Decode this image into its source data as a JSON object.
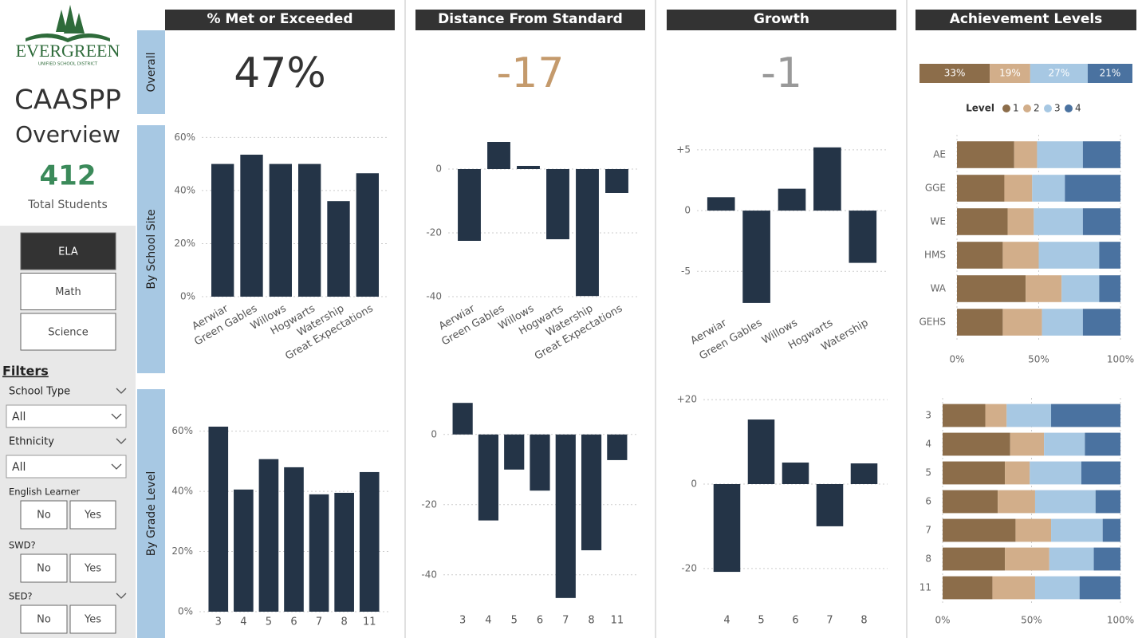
{
  "sidebar": {
    "logo_name": "EVERGREEN",
    "logo_sub": "UNIFIED SCHOOL DISTRICT",
    "title": "CAASPP",
    "subtitle": "Overview",
    "total": 412,
    "total_label": "Total Students",
    "subjects": [
      "ELA",
      "Math",
      "Science"
    ],
    "filters_title": "Filters",
    "dropdowns": [
      {
        "label": "School Type",
        "value": "All"
      },
      {
        "label": "Ethnicity",
        "value": "All"
      }
    ],
    "toggles": [
      {
        "label": "English Learner",
        "options": [
          "No",
          "Yes"
        ]
      },
      {
        "label": "SWD?",
        "options": [
          "No",
          "Yes"
        ]
      },
      {
        "label": "SED?",
        "options": [
          "No",
          "Yes"
        ]
      }
    ]
  },
  "panels": {
    "headers": [
      "% Met or Exceeded",
      "Distance From Standard",
      "Growth",
      "Achievement Levels"
    ],
    "row_labels": [
      "Overall",
      "By School Site",
      "By Grade Level"
    ],
    "kpis": [
      "47%",
      "-17",
      "-1"
    ]
  },
  "chart_data": [
    {
      "type": "bar",
      "categories": [
        "Aerwiar",
        "Green Gables",
        "Willows",
        "Hogwarts",
        "Watership",
        "Great Expectations"
      ],
      "values": [
        50,
        53.5,
        50,
        50,
        36,
        46.5
      ],
      "color": "#243447",
      "ylim": [
        0,
        64
      ],
      "yticks": [
        {
          "value": 0,
          "label": "0%"
        },
        {
          "value": 20,
          "label": "20%"
        },
        {
          "value": 40,
          "label": "40%"
        },
        {
          "value": 60,
          "label": "60%"
        }
      ],
      "grid": true
    },
    {
      "type": "bar",
      "categories": [
        "Aerwiar",
        "Green Gables",
        "Willows",
        "Hogwarts",
        "Watership",
        "Great Expectations"
      ],
      "values": [
        -22.5,
        8.5,
        1,
        -22,
        -39.8,
        -7.5
      ],
      "color": "#243447",
      "ylim": [
        -42,
        12
      ],
      "yticks": [
        0,
        -20,
        -40
      ],
      "grid": true
    },
    {
      "type": "bar",
      "categories": [
        "Aerwiar",
        "Green Gables",
        "Willows",
        "Hogwarts",
        "Watership"
      ],
      "values": [
        1.1,
        -7.6,
        1.8,
        5.2,
        -4.3
      ],
      "color": "#243447",
      "ylim": [
        -8,
        6.5
      ],
      "yticks": [
        {
          "value": 5,
          "label": "+5"
        },
        0,
        -5
      ],
      "grid": true
    },
    {
      "type": "stacked-bar",
      "legend_title": "Level",
      "series": [
        {
          "name": "1",
          "color": "#8c6d4a",
          "values": [
            33
          ],
          "value_labels": [
            "33%"
          ]
        },
        {
          "name": "2",
          "color": "#d2ae8a",
          "values": [
            19
          ],
          "value_labels": [
            "19%"
          ]
        },
        {
          "name": "3",
          "color": "#a7c8e3",
          "values": [
            27
          ],
          "value_labels": [
            "27%"
          ]
        },
        {
          "name": "4",
          "color": "#4a72a0",
          "values": [
            21
          ],
          "value_labels": [
            "21%"
          ]
        }
      ]
    },
    {
      "type": "stacked-hbar",
      "categories": [
        "AE",
        "GGE",
        "WE",
        "HMS",
        "WA",
        "GEHS"
      ],
      "series": [
        {
          "color": "#8c6d4a",
          "values": [
            35,
            29,
            31,
            28,
            42,
            28
          ]
        },
        {
          "color": "#d2ae8a",
          "values": [
            14,
            17,
            16,
            22,
            22,
            24
          ]
        },
        {
          "color": "#a7c8e3",
          "values": [
            28,
            20,
            30,
            37,
            23,
            25
          ]
        },
        {
          "color": "#4a72a0",
          "values": [
            23,
            34,
            23,
            13,
            13,
            23
          ]
        }
      ],
      "xlim": [
        0,
        100
      ],
      "xticks": [
        {
          "value": 0,
          "label": "0%"
        },
        {
          "value": 50,
          "label": "50%"
        },
        {
          "value": 100,
          "label": "100%"
        }
      ],
      "grid": true
    },
    {
      "type": "bar",
      "categories": [
        "3",
        "4",
        "5",
        "6",
        "7",
        "8",
        "11"
      ],
      "values": [
        61.5,
        40.6,
        50.7,
        48,
        39,
        39.5,
        46.4
      ],
      "color": "#243447",
      "ylim": [
        0,
        66
      ],
      "yticks": [
        {
          "value": 0,
          "label": "0%"
        },
        {
          "value": 20,
          "label": "20%"
        },
        {
          "value": 40,
          "label": "40%"
        },
        {
          "value": 60,
          "label": "60%"
        }
      ],
      "grid": true
    },
    {
      "type": "bar",
      "categories": [
        "3",
        "4",
        "5",
        "6",
        "7",
        "8",
        "11"
      ],
      "values": [
        9,
        -24.5,
        -10,
        -16,
        -46.6,
        -33,
        -7.3
      ],
      "color": "#243447",
      "ylim": [
        -48,
        12
      ],
      "yticks": [
        0,
        -20,
        -40
      ],
      "grid": true
    },
    {
      "type": "bar",
      "categories": [
        "4",
        "5",
        "6",
        "7",
        "8"
      ],
      "values": [
        -20.8,
        15.3,
        5.1,
        -10,
        4.9
      ],
      "color": "#243447",
      "ylim": [
        -24,
        24
      ],
      "yticks": [
        {
          "value": 20,
          "label": "+20"
        },
        0,
        -20
      ],
      "grid": true
    },
    {
      "type": "stacked-hbar",
      "categories": [
        "3",
        "4",
        "5",
        "6",
        "7",
        "8",
        "11"
      ],
      "series": [
        {
          "color": "#8c6d4a",
          "values": [
            24,
            38,
            35,
            31,
            41,
            35,
            28
          ]
        },
        {
          "color": "#d2ae8a",
          "values": [
            12,
            19,
            14,
            21,
            20,
            25,
            24
          ]
        },
        {
          "color": "#a7c8e3",
          "values": [
            25,
            23,
            29,
            34,
            29,
            25,
            25
          ]
        },
        {
          "color": "#4a72a0",
          "values": [
            39,
            20,
            22,
            14,
            10,
            15,
            23
          ]
        }
      ],
      "xlim": [
        0,
        100
      ],
      "xticks": [
        {
          "value": 0,
          "label": "0%"
        },
        {
          "value": 50,
          "label": "50%"
        },
        {
          "value": 100,
          "label": "100%"
        }
      ],
      "grid": true
    }
  ]
}
